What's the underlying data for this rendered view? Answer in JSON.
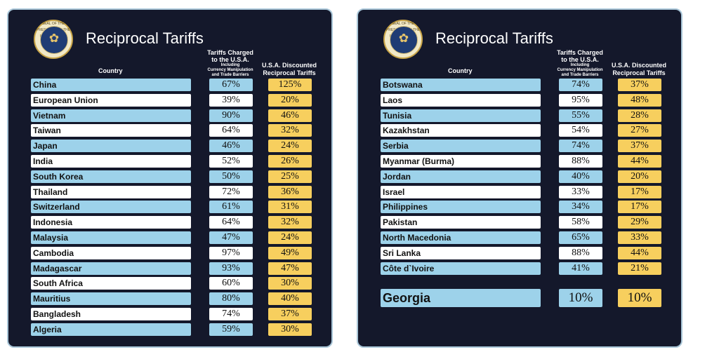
{
  "left_panel": {
    "title": "Reciprocal Tariffs",
    "seal_text": "SEAL OF THE PRESIDENT OF THE UNITED STATES",
    "headers": {
      "country": "Country",
      "charged_line1": "Tariffs Charged",
      "charged_line2": "to the U.S.A.",
      "charged_sub1": "Including",
      "charged_sub2": "Currency Manipulation",
      "charged_sub3": "and Trade Barriers",
      "disc_line1": "U.S.A. Discounted",
      "disc_line2": "Reciprocal Tariffs"
    },
    "rows": [
      {
        "country": "China",
        "charged": "67%",
        "discounted": "125%",
        "style": "blue"
      },
      {
        "country": "European Union",
        "charged": "39%",
        "discounted": "20%",
        "style": "white"
      },
      {
        "country": "Vietnam",
        "charged": "90%",
        "discounted": "46%",
        "style": "blue"
      },
      {
        "country": "Taiwan",
        "charged": "64%",
        "discounted": "32%",
        "style": "white"
      },
      {
        "country": "Japan",
        "charged": "46%",
        "discounted": "24%",
        "style": "blue"
      },
      {
        "country": "India",
        "charged": "52%",
        "discounted": "26%",
        "style": "white"
      },
      {
        "country": "South Korea",
        "charged": "50%",
        "discounted": "25%",
        "style": "blue"
      },
      {
        "country": "Thailand",
        "charged": "72%",
        "discounted": "36%",
        "style": "white"
      },
      {
        "country": "Switzerland",
        "charged": "61%",
        "discounted": "31%",
        "style": "blue"
      },
      {
        "country": "Indonesia",
        "charged": "64%",
        "discounted": "32%",
        "style": "white"
      },
      {
        "country": "Malaysia",
        "charged": "47%",
        "discounted": "24%",
        "style": "blue"
      },
      {
        "country": "Cambodia",
        "charged": "97%",
        "discounted": "49%",
        "style": "white"
      },
      {
        "country": "Madagascar",
        "charged": "93%",
        "discounted": "47%",
        "style": "blue"
      },
      {
        "country": "South Africa",
        "charged": "60%",
        "discounted": "30%",
        "style": "white"
      },
      {
        "country": "Mauritius",
        "charged": "80%",
        "discounted": "40%",
        "style": "blue"
      },
      {
        "country": "Bangladesh",
        "charged": "74%",
        "discounted": "37%",
        "style": "white"
      },
      {
        "country": "Algeria",
        "charged": "59%",
        "discounted": "30%",
        "style": "blue"
      }
    ]
  },
  "right_panel": {
    "title": "Reciprocal Tariffs",
    "seal_text": "SEAL OF THE PRESIDENT OF THE UNITED STATES",
    "headers": {
      "country": "Country",
      "charged_line1": "Tariffs Charged",
      "charged_line2": "to the U.S.A.",
      "charged_sub1": "Including",
      "charged_sub2": "Currency Manipulation",
      "charged_sub3": "and Trade Barriers",
      "disc_line1": "U.S.A. Discounted",
      "disc_line2": "Reciprocal Tariffs"
    },
    "rows": [
      {
        "country": "Botswana",
        "charged": "74%",
        "discounted": "37%",
        "style": "blue"
      },
      {
        "country": "Laos",
        "charged": "95%",
        "discounted": "48%",
        "style": "white"
      },
      {
        "country": "Tunisia",
        "charged": "55%",
        "discounted": "28%",
        "style": "blue"
      },
      {
        "country": "Kazakhstan",
        "charged": "54%",
        "discounted": "27%",
        "style": "white"
      },
      {
        "country": "Serbia",
        "charged": "74%",
        "discounted": "37%",
        "style": "blue"
      },
      {
        "country": "Myanmar (Burma)",
        "charged": "88%",
        "discounted": "44%",
        "style": "white"
      },
      {
        "country": "Jordan",
        "charged": "40%",
        "discounted": "20%",
        "style": "blue"
      },
      {
        "country": "Israel",
        "charged": "33%",
        "discounted": "17%",
        "style": "white"
      },
      {
        "country": "Philippines",
        "charged": "34%",
        "discounted": "17%",
        "style": "blue"
      },
      {
        "country": "Pakistan",
        "charged": "58%",
        "discounted": "29%",
        "style": "white"
      },
      {
        "country": "North Macedonia",
        "charged": "65%",
        "discounted": "33%",
        "style": "blue"
      },
      {
        "country": "Sri Lanka",
        "charged": "88%",
        "discounted": "44%",
        "style": "white"
      },
      {
        "country": "Côte d`Ivoire",
        "charged": "41%",
        "discounted": "21%",
        "style": "blue"
      }
    ],
    "featured": {
      "country": "Georgia",
      "charged": "10%",
      "discounted": "10%"
    }
  },
  "colors": {
    "panel_bg": "#14182b",
    "row_blue": "#9dd2ea",
    "row_white": "#ffffff",
    "discount_yellow": "#f7cf5e"
  },
  "icons": [
    "presidential-seal-icon"
  ]
}
